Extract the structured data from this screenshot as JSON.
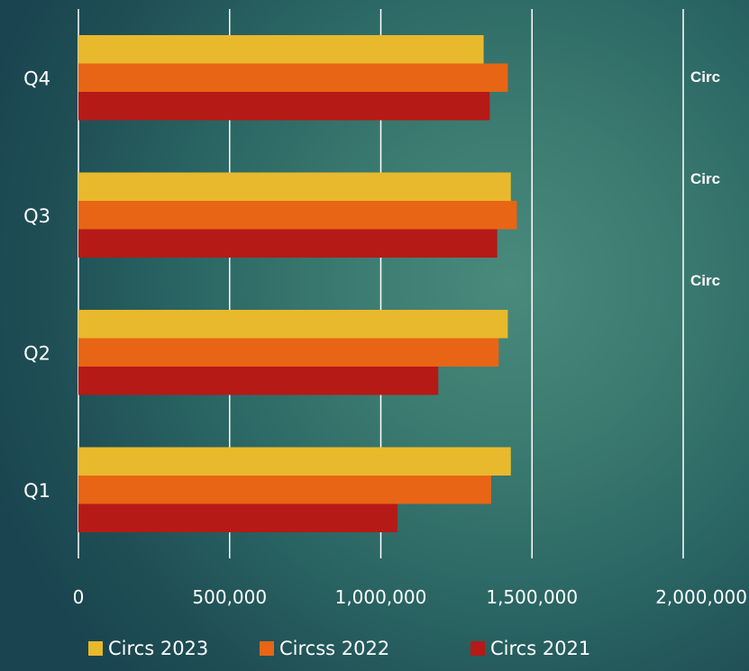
{
  "chart_data": {
    "type": "bar",
    "orientation": "horizontal",
    "categories": [
      "Q1",
      "Q2",
      "Q3",
      "Q4"
    ],
    "series": [
      {
        "name": "Circs 2023",
        "color": "#e8b92c",
        "values": [
          1430000,
          1420000,
          1430000,
          1340000
        ]
      },
      {
        "name": "Circss 2022",
        "color": "#e86515",
        "values": [
          1365000,
          1390000,
          1450000,
          1420000
        ]
      },
      {
        "name": "Circs 2021",
        "color": "#b51a17",
        "values": [
          1055000,
          1190000,
          1385000,
          1360000
        ]
      }
    ],
    "x_ticks": [
      "0",
      "500,000",
      "1,000,000",
      "1,500,000",
      "2,000,000"
    ],
    "xlim": [
      0,
      2000000
    ],
    "grid": true,
    "legend_position": "bottom",
    "title": "",
    "xlabel": "",
    "ylabel": ""
  },
  "side_labels": [
    "Circ",
    "Circ",
    "Circ"
  ]
}
